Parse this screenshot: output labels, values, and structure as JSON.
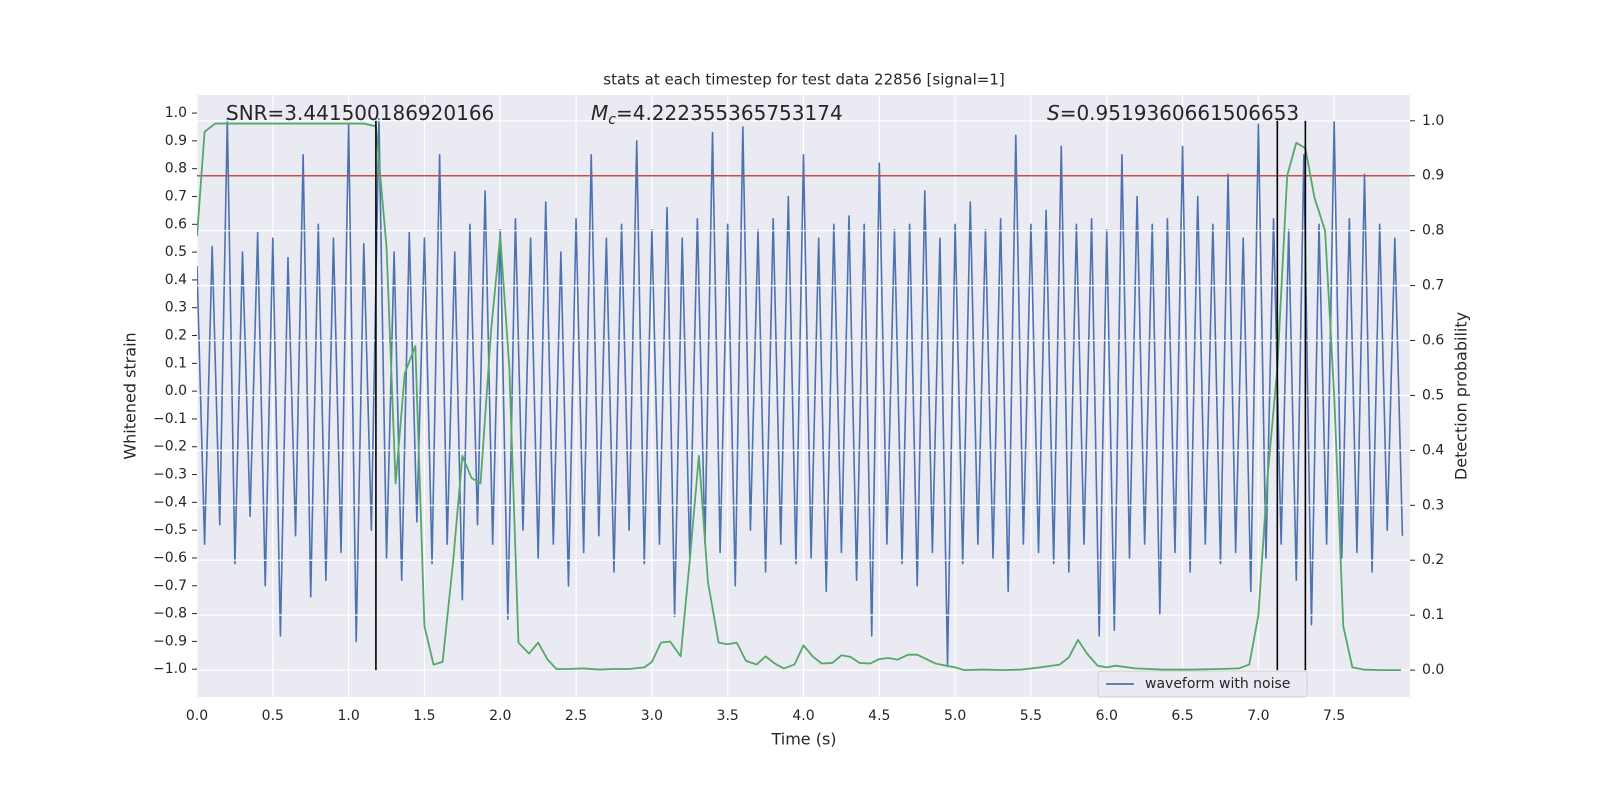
{
  "chart_data": {
    "type": "line",
    "title": "stats at each timestep for test data 22856 [signal=1]",
    "xlabel": "Time (s)",
    "ylabel": "Whitened strain",
    "y2label": "Detection probability",
    "annotations": [
      {
        "text": "SNR=3.441500186920166"
      },
      {
        "symbol": "M",
        "subscript": "c",
        "text": "=4.222355365753174"
      },
      {
        "symbol": "S",
        "text": "=0.9519360661506653"
      }
    ],
    "xlim": [
      0,
      8
    ],
    "xticks": [
      {
        "value": 0,
        "label": "0.0"
      },
      0.5,
      {
        "value": 1,
        "label": "1.0"
      },
      1.5,
      {
        "value": 2,
        "label": "2.0"
      },
      2.5,
      {
        "value": 3,
        "label": "3.0"
      },
      3.5,
      {
        "value": 4,
        "label": "4.0"
      },
      4.5,
      {
        "value": 5,
        "label": "5.0"
      },
      5.5,
      {
        "value": 6,
        "label": "6.0"
      },
      6.5,
      {
        "value": 7,
        "label": "7.0"
      },
      7.5
    ],
    "ylim": [
      -1.1,
      1.065
    ],
    "yticks": [
      {
        "value": 1,
        "label": "1.0"
      },
      0.9,
      0.8,
      0.7,
      0.6,
      0.5,
      0.4,
      0.3,
      0.2,
      0.1,
      {
        "value": 0,
        "label": "0.0"
      },
      {
        "value": -0.1,
        "label": "−0.1"
      },
      {
        "value": -0.2,
        "label": "−0.2"
      },
      {
        "value": -0.3,
        "label": "−0.3"
      },
      {
        "value": -0.4,
        "label": "−0.4"
      },
      {
        "value": -0.5,
        "label": "−0.5"
      },
      {
        "value": -0.6,
        "label": "−0.6"
      },
      {
        "value": -0.7,
        "label": "−0.7"
      },
      {
        "value": -0.8,
        "label": "−0.8"
      },
      {
        "value": -0.9,
        "label": "−0.9"
      },
      {
        "value": -1,
        "label": "−1.0"
      }
    ],
    "y2lim": [
      -0.049,
      1.047
    ],
    "y2ticks": [
      {
        "value": 0,
        "label": "0.0"
      },
      0.1,
      0.2,
      0.3,
      0.4,
      0.5,
      0.6,
      0.7,
      0.8,
      0.9,
      {
        "value": 1,
        "label": "1.0"
      }
    ],
    "grid": [
      "x",
      "y2"
    ],
    "legend": "lower right",
    "series": [
      {
        "name": "waveform with noise",
        "color": "#4c72b0",
        "axis": "y",
        "x": [
          0,
          0.05,
          0.1,
          0.15,
          0.2,
          0.25,
          0.3,
          0.35,
          0.4,
          0.45,
          0.5,
          0.55,
          0.6,
          0.65,
          0.7,
          0.75,
          0.8,
          0.85,
          0.9,
          0.95,
          1,
          1.05,
          1.1,
          1.15,
          1.2,
          1.25,
          1.3,
          1.35,
          1.4,
          1.45,
          1.5,
          1.55,
          1.6,
          1.65,
          1.7,
          1.75,
          1.8,
          1.85,
          1.9,
          1.95,
          2,
          2.05,
          2.1,
          2.15,
          2.2,
          2.25,
          2.3,
          2.35,
          2.4,
          2.45,
          2.5,
          2.55,
          2.6,
          2.65,
          2.7,
          2.75,
          2.8,
          2.85,
          2.9,
          2.95,
          3,
          3.05,
          3.1,
          3.15,
          3.2,
          3.25,
          3.3,
          3.35,
          3.4,
          3.45,
          3.5,
          3.55,
          3.6,
          3.65,
          3.7,
          3.75,
          3.8,
          3.85,
          3.9,
          3.95,
          4,
          4.05,
          4.1,
          4.15,
          4.2,
          4.25,
          4.3,
          4.35,
          4.4,
          4.45,
          4.5,
          4.55,
          4.6,
          4.65,
          4.7,
          4.75,
          4.8,
          4.85,
          4.9,
          4.95,
          5,
          5.05,
          5.1,
          5.15,
          5.2,
          5.25,
          5.3,
          5.35,
          5.4,
          5.45,
          5.5,
          5.55,
          5.6,
          5.65,
          5.7,
          5.75,
          5.8,
          5.85,
          5.9,
          5.95,
          6,
          6.05,
          6.1,
          6.15,
          6.2,
          6.25,
          6.3,
          6.35,
          6.4,
          6.45,
          6.5,
          6.55,
          6.6,
          6.65,
          6.7,
          6.75,
          6.8,
          6.85,
          6.9,
          6.95,
          7,
          7.05,
          7.1,
          7.15,
          7.2,
          7.25,
          7.3,
          7.35,
          7.4,
          7.45,
          7.5,
          7.55,
          7.6,
          7.65,
          7.7,
          7.75,
          7.8,
          7.85,
          7.9,
          7.95
        ],
        "values": [
          0.45,
          -0.55,
          0.52,
          -0.48,
          0.98,
          -0.62,
          0.5,
          -0.45,
          0.57,
          -0.7,
          0.55,
          -0.88,
          0.48,
          -0.52,
          0.85,
          -0.74,
          0.6,
          -0.68,
          0.55,
          -0.58,
          0.96,
          -0.9,
          0.53,
          -0.5,
          0.98,
          -0.6,
          0.5,
          -0.68,
          0.57,
          -0.47,
          0.55,
          -0.62,
          0.85,
          -0.55,
          0.5,
          -0.75,
          0.6,
          -0.48,
          0.72,
          -0.55,
          0.58,
          -0.82,
          0.62,
          -0.5,
          0.55,
          -0.6,
          0.68,
          -0.55,
          0.5,
          -0.7,
          0.62,
          -0.58,
          0.85,
          -0.52,
          0.55,
          -0.65,
          0.6,
          -0.5,
          0.9,
          -0.62,
          0.58,
          -0.55,
          0.66,
          -0.81,
          0.55,
          -0.6,
          0.62,
          -0.55,
          0.93,
          -0.58,
          0.6,
          -0.7,
          0.95,
          -0.5,
          0.58,
          -0.65,
          0.62,
          -0.55,
          0.7,
          -0.62,
          0.85,
          -0.6,
          0.55,
          -0.72,
          0.6,
          -0.58,
          0.63,
          -0.68,
          0.6,
          -0.88,
          0.82,
          -0.55,
          0.58,
          -0.62,
          0.6,
          -0.7,
          0.72,
          -0.58,
          0.55,
          -0.99,
          0.6,
          -0.62,
          0.68,
          -0.55,
          0.58,
          -0.6,
          0.62,
          -0.72,
          0.92,
          -0.55,
          0.6,
          -0.58,
          0.65,
          -0.62,
          0.88,
          -0.65,
          0.6,
          -0.55,
          0.62,
          -0.88,
          0.58,
          -0.86,
          0.85,
          -0.6,
          0.7,
          -0.55,
          0.6,
          -0.8,
          0.62,
          -0.58,
          0.88,
          -0.65,
          0.7,
          -0.55,
          0.6,
          -0.62,
          0.78,
          -0.58,
          0.55,
          -0.72,
          0.96,
          -0.6,
          0.62,
          -0.55,
          0.58,
          -0.68,
          0.85,
          -0.84,
          0.6,
          -0.55,
          0.97,
          -0.6,
          0.62,
          -0.58,
          0.78,
          -0.65,
          0.6,
          -0.5,
          0.55,
          -0.52
        ]
      },
      {
        "color": "#55a868",
        "axis": "y2",
        "x": [
          0,
          0.05,
          0.12,
          0.3,
          0.5,
          0.7,
          0.9,
          1.1,
          1.18,
          1.25,
          1.31,
          1.37,
          1.44,
          1.5,
          1.56,
          1.62,
          1.69,
          1.75,
          1.81,
          1.87,
          1.94,
          2,
          2.06,
          2.12,
          2.19,
          2.25,
          2.31,
          2.37,
          2.45,
          2.55,
          2.65,
          2.75,
          2.85,
          2.95,
          3,
          3.06,
          3.12,
          3.19,
          3.25,
          3.31,
          3.37,
          3.44,
          3.5,
          3.56,
          3.62,
          3.69,
          3.75,
          3.81,
          3.87,
          3.94,
          4,
          4.06,
          4.12,
          4.19,
          4.25,
          4.31,
          4.37,
          4.44,
          4.5,
          4.56,
          4.62,
          4.69,
          4.75,
          4.81,
          4.87,
          4.94,
          5,
          5.06,
          5.19,
          5.31,
          5.44,
          5.56,
          5.69,
          5.75,
          5.81,
          5.87,
          5.94,
          6,
          6.06,
          6.19,
          6.37,
          6.56,
          6.75,
          6.87,
          6.94,
          7,
          7.06,
          7.125,
          7.19,
          7.25,
          7.31,
          7.37,
          7.44,
          7.5,
          7.56,
          7.62,
          7.69,
          7.81,
          7.94
        ],
        "values": [
          0.79,
          0.98,
          0.995,
          0.995,
          0.995,
          0.995,
          0.995,
          0.995,
          0.99,
          0.77,
          0.34,
          0.54,
          0.59,
          0.08,
          0.01,
          0.015,
          0.2,
          0.39,
          0.35,
          0.34,
          0.62,
          0.79,
          0.55,
          0.05,
          0.03,
          0.05,
          0.02,
          0.002,
          0.002,
          0.003,
          0.001,
          0.002,
          0.002,
          0.005,
          0.015,
          0.05,
          0.052,
          0.025,
          0.2,
          0.39,
          0.16,
          0.05,
          0.047,
          0.05,
          0.017,
          0.01,
          0.025,
          0.012,
          0.003,
          0.01,
          0.045,
          0.025,
          0.012,
          0.013,
          0.027,
          0.024,
          0.013,
          0.012,
          0.02,
          0.022,
          0.019,
          0.028,
          0.028,
          0.02,
          0.012,
          0.008,
          0.005,
          0,
          0.001,
          0,
          0.001,
          0.005,
          0.01,
          0.023,
          0.055,
          0.03,
          0.008,
          0.005,
          0.008,
          0.003,
          0.001,
          0.001,
          0.002,
          0.003,
          0.01,
          0.1,
          0.35,
          0.55,
          0.9,
          0.96,
          0.95,
          0.86,
          0.8,
          0.5,
          0.08,
          0.005,
          0.001,
          0,
          0
        ]
      }
    ],
    "hlines": [
      {
        "value": 0.9,
        "axis": "y2",
        "color": "#c44e52"
      }
    ],
    "vlines": {
      "x": [
        1.18,
        7.125,
        7.31
      ],
      "y2": [
        0,
        1
      ],
      "color": "#000000"
    }
  }
}
